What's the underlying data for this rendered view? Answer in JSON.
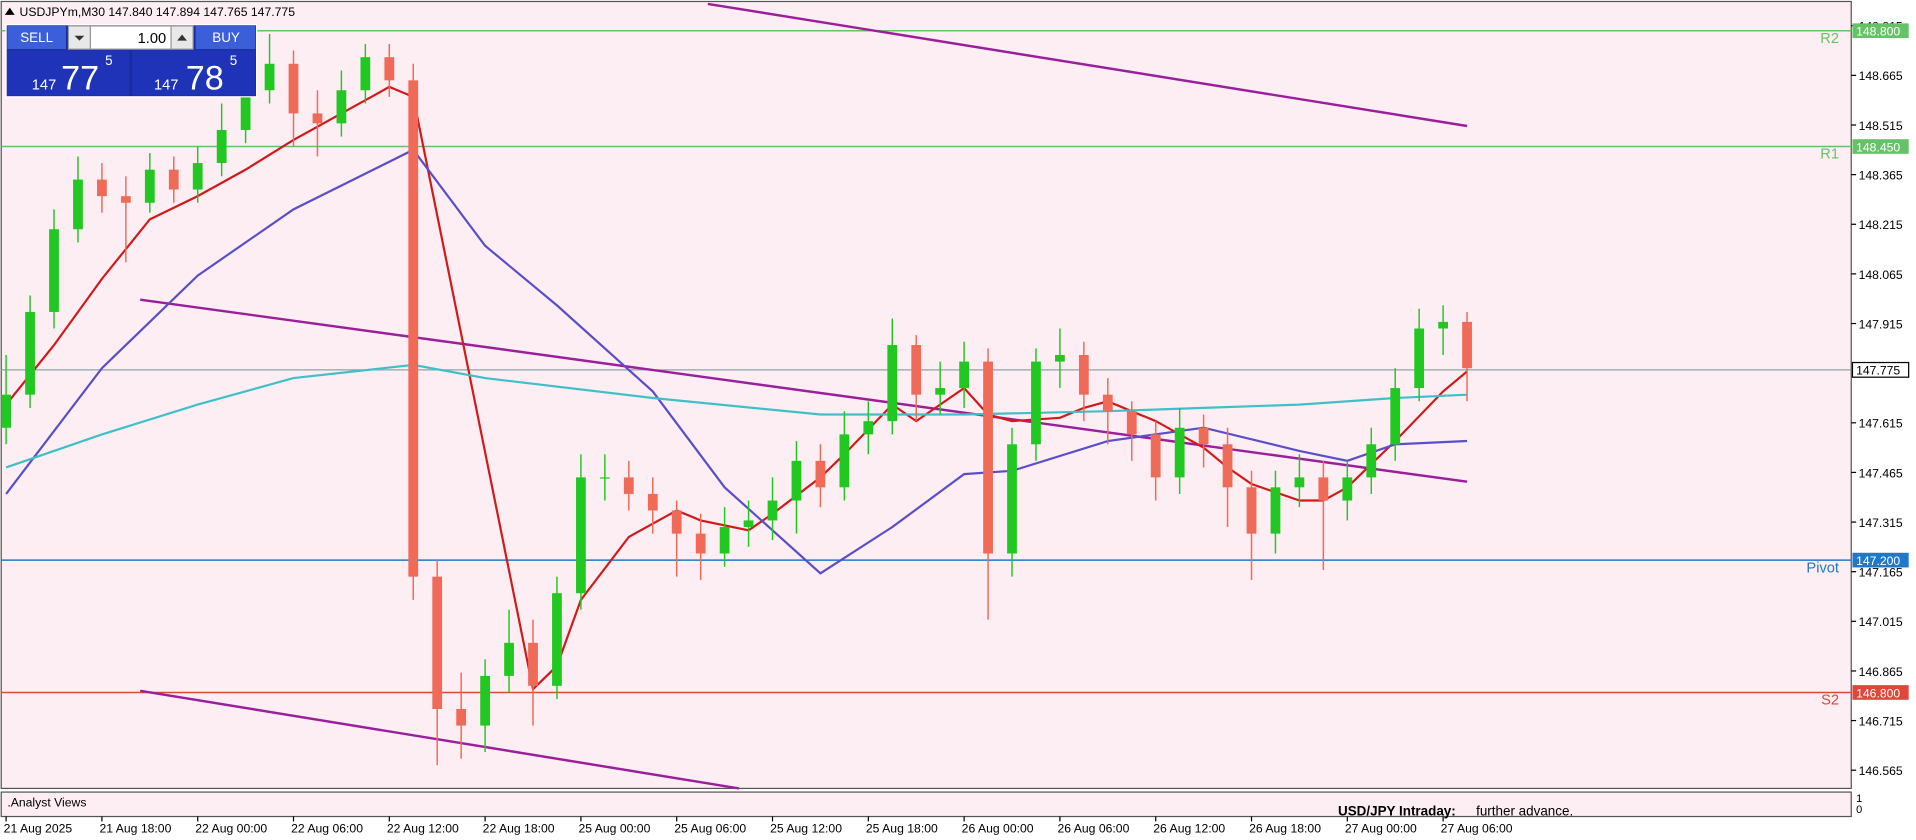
{
  "chart_data": {
    "type": "candlestick",
    "header": "USDJPYm,M30  147.840 147.894 147.765 147.775",
    "trade_panel": {
      "sell": "SELL",
      "buy": "BUY",
      "lot": "1.00",
      "bid": [
        "147",
        "77",
        "5"
      ],
      "ask": [
        "147",
        "78",
        "5"
      ]
    },
    "ylim": [
      146.51,
      148.892
    ],
    "yticks": [
      148.815,
      148.665,
      148.515,
      148.365,
      148.215,
      148.065,
      147.915,
      147.615,
      147.465,
      147.315,
      147.165,
      147.015,
      146.865,
      146.715,
      146.565
    ],
    "categories": [
      "21 Aug 2025",
      null,
      null,
      null,
      "21 Aug 18:00",
      null,
      null,
      null,
      "22 Aug 00:00",
      null,
      null,
      null,
      "22 Aug 06:00",
      null,
      null,
      null,
      "22 Aug 12:00",
      null,
      null,
      null,
      "22 Aug 18:00",
      null,
      null,
      null,
      "25 Aug 00:00",
      null,
      null,
      null,
      "25 Aug 06:00",
      null,
      null,
      null,
      "25 Aug 12:00",
      null,
      null,
      null,
      "25 Aug 18:00",
      null,
      null,
      null,
      "26 Aug 00:00",
      null,
      null,
      null,
      "26 Aug 06:00",
      null,
      null,
      null,
      "26 Aug 12:00",
      null,
      null,
      null,
      "26 Aug 18:00",
      null,
      null,
      null,
      "27 Aug 00:00",
      null,
      null,
      null,
      "27 Aug 06:00",
      null
    ],
    "candles": {
      "up_color": "#22c822",
      "down_color": "#f06a58",
      "open": [
        147.6,
        147.7,
        147.95,
        148.2,
        148.35,
        148.3,
        148.28,
        148.38,
        148.32,
        148.4,
        148.5,
        148.62,
        148.7,
        148.55,
        148.52,
        148.62,
        148.72,
        148.65,
        147.15,
        146.75,
        146.7,
        146.85,
        146.95,
        146.82,
        147.1,
        147.45,
        147.45,
        147.4,
        147.35,
        147.28,
        147.22,
        147.3,
        147.32,
        147.38,
        147.5,
        147.42,
        147.58,
        147.62,
        147.85,
        147.7,
        147.72,
        147.8,
        147.22,
        147.55,
        147.8,
        147.82,
        147.7,
        147.65,
        147.58,
        147.45,
        147.6,
        147.55,
        147.42,
        147.28,
        147.42,
        147.45,
        147.38,
        147.45,
        147.55,
        147.72,
        147.9,
        147.92
      ],
      "high": [
        147.82,
        148.0,
        148.26,
        148.42,
        148.4,
        148.36,
        148.43,
        148.42,
        148.45,
        148.58,
        148.68,
        148.79,
        148.74,
        148.62,
        148.68,
        148.76,
        148.76,
        148.7,
        147.2,
        146.86,
        146.9,
        147.05,
        147.02,
        147.15,
        147.52,
        147.52,
        147.5,
        147.45,
        147.38,
        147.34,
        147.36,
        147.38,
        147.45,
        147.56,
        147.55,
        147.65,
        147.68,
        147.93,
        147.88,
        147.8,
        147.86,
        147.84,
        147.6,
        147.84,
        147.9,
        147.86,
        147.75,
        147.68,
        147.62,
        147.66,
        147.64,
        147.6,
        147.47,
        147.47,
        147.52,
        147.5,
        147.5,
        147.6,
        147.78,
        147.96,
        147.97,
        147.95
      ],
      "low": [
        147.55,
        147.66,
        147.9,
        148.16,
        148.25,
        148.1,
        148.25,
        148.28,
        148.28,
        148.36,
        148.46,
        148.58,
        148.45,
        148.42,
        148.48,
        148.58,
        148.6,
        147.08,
        146.58,
        146.6,
        146.62,
        146.8,
        146.7,
        146.78,
        147.05,
        147.38,
        147.35,
        147.28,
        147.15,
        147.14,
        147.18,
        147.24,
        147.26,
        147.28,
        147.36,
        147.38,
        147.52,
        147.58,
        147.62,
        147.64,
        147.66,
        147.02,
        147.15,
        147.5,
        147.72,
        147.62,
        147.55,
        147.5,
        147.38,
        147.4,
        147.48,
        147.3,
        147.14,
        147.22,
        147.36,
        147.17,
        147.32,
        147.4,
        147.5,
        147.68,
        147.82,
        147.68
      ],
      "close": [
        147.7,
        147.95,
        148.2,
        148.35,
        148.3,
        148.28,
        148.38,
        148.32,
        148.4,
        148.5,
        148.62,
        148.7,
        148.55,
        148.52,
        148.62,
        148.72,
        148.65,
        147.15,
        146.75,
        146.7,
        146.85,
        146.95,
        146.82,
        147.1,
        147.45,
        147.45,
        147.4,
        147.35,
        147.28,
        147.22,
        147.3,
        147.32,
        147.38,
        147.5,
        147.42,
        147.58,
        147.62,
        147.85,
        147.7,
        147.72,
        147.8,
        147.22,
        147.55,
        147.8,
        147.82,
        147.7,
        147.65,
        147.58,
        147.45,
        147.6,
        147.55,
        147.42,
        147.28,
        147.42,
        147.45,
        147.38,
        147.45,
        147.55,
        147.72,
        147.9,
        147.92,
        147.78
      ]
    },
    "ma": [
      {
        "color": "#d11a1a",
        "x": [
          0,
          2,
          4,
          6,
          8,
          10,
          12,
          14,
          16,
          17,
          22,
          23,
          24,
          26,
          28,
          29,
          31,
          32,
          34,
          35,
          37,
          38,
          40,
          41,
          42,
          44,
          45,
          46,
          48,
          50,
          51,
          52,
          54,
          55,
          56,
          58,
          60,
          61
        ],
        "values": [
          147.67,
          147.85,
          148.05,
          148.23,
          148.3,
          148.38,
          148.47,
          148.55,
          148.63,
          148.6,
          146.81,
          146.88,
          147.08,
          147.27,
          147.35,
          147.32,
          147.29,
          147.34,
          147.45,
          147.52,
          147.67,
          147.62,
          147.72,
          147.64,
          147.62,
          147.63,
          147.66,
          147.68,
          147.62,
          147.54,
          147.48,
          147.43,
          147.38,
          147.38,
          147.42,
          147.56,
          147.71,
          147.77
        ]
      },
      {
        "color": "#5a4fc8",
        "x": [
          0,
          4,
          8,
          12,
          17,
          20,
          23,
          27,
          30,
          34,
          37,
          40,
          42,
          46,
          50,
          54,
          56,
          58,
          61
        ],
        "values": [
          147.4,
          147.78,
          148.06,
          148.26,
          148.44,
          148.15,
          147.97,
          147.71,
          147.42,
          147.16,
          147.3,
          147.46,
          147.47,
          147.56,
          147.6,
          147.53,
          147.5,
          147.55,
          147.56
        ]
      },
      {
        "color": "#3fc0c8",
        "x": [
          0,
          4,
          8,
          12,
          17,
          20,
          27,
          34,
          40,
          46,
          50,
          54,
          58,
          61
        ],
        "values": [
          147.48,
          147.58,
          147.67,
          147.75,
          147.79,
          147.75,
          147.69,
          147.64,
          147.64,
          147.65,
          147.66,
          147.67,
          147.69,
          147.7
        ]
      }
    ],
    "trendlines": [
      {
        "color": "#9b1f9b",
        "x": [
          29.3,
          61.0
        ],
        "y": [
          148.881,
          148.512
        ]
      },
      {
        "color": "#9b1f9b",
        "x": [
          5.6,
          61.0
        ],
        "y": [
          147.987,
          147.437
        ]
      },
      {
        "color": "#9b1f9b",
        "x": [
          5.6,
          30.6
        ],
        "y": [
          146.805,
          146.51
        ]
      }
    ],
    "levels": [
      {
        "name": "R2",
        "price": {
          "value": 148.8,
          "label": "148.800"
        },
        "color": "#66c266"
      },
      {
        "name": "R1",
        "price": {
          "value": 148.45,
          "label": "148.450"
        },
        "color": "#66c266"
      },
      {
        "name": "Pivot",
        "price": {
          "value": 147.2,
          "label": "147.200"
        },
        "color": "#1f78c8"
      },
      {
        "name": "S2",
        "price": {
          "value": 146.8,
          "label": "146.800"
        },
        "color": "#e0463a"
      }
    ],
    "current_price": 147.775,
    "current_color": "#8fa4a4",
    "subpanel": {
      "name": ".Analyst Views",
      "title": "USD/JPY Intraday:",
      "text": "further advance.",
      "yticks": [
        1,
        0
      ]
    }
  }
}
